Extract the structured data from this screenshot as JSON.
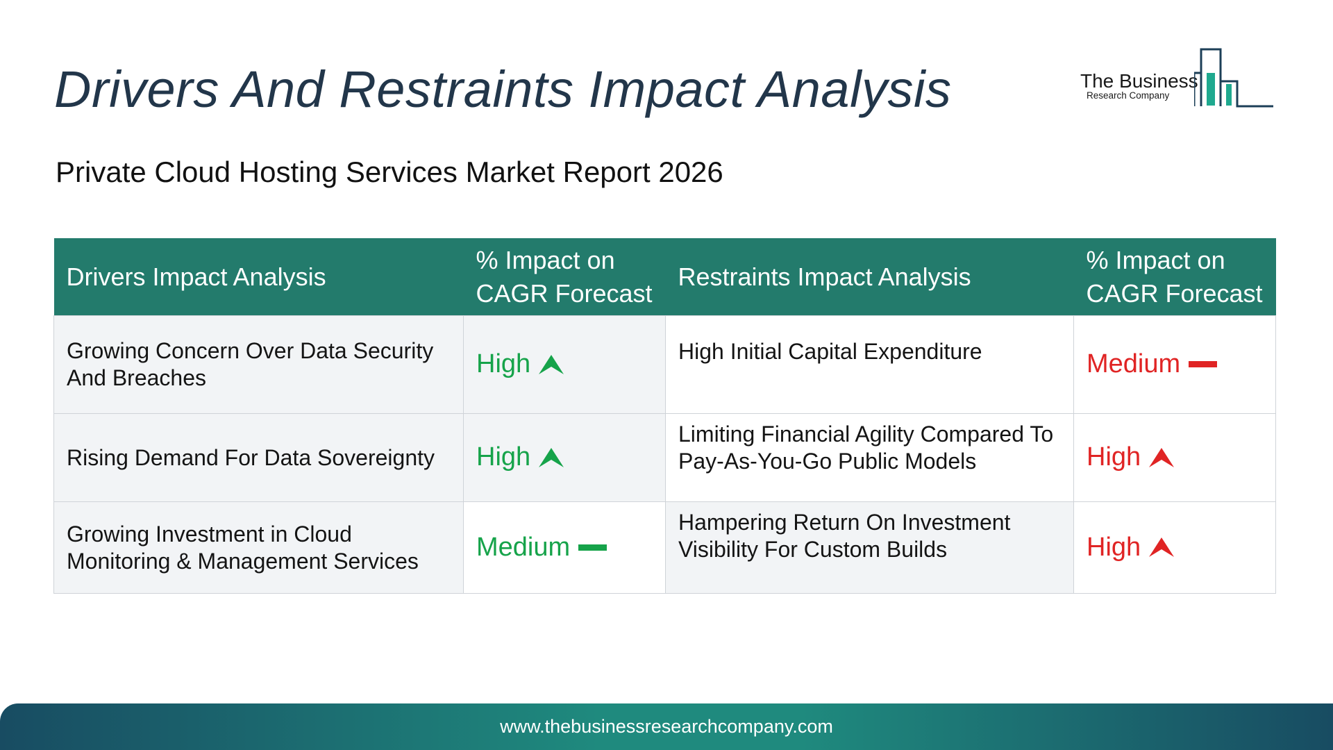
{
  "header": {
    "title": "Drivers And Restraints Impact Analysis",
    "subtitle": "Private Cloud Hosting Services Market Report 2026"
  },
  "logo": {
    "line1": "The Business",
    "line2": "Research Company"
  },
  "table": {
    "headers": [
      "Drivers Impact Analysis",
      "% Impact on CAGR Forecast",
      "Restraints Impact Analysis",
      "% Impact on CAGR Forecast"
    ],
    "rows": [
      {
        "driver": "Growing Concern Over Data Security And Breaches",
        "driver_impact": "High",
        "driver_icon": "arrow-up-icon",
        "restraint": "High Initial Capital Expenditure",
        "restraint_impact": "Medium",
        "restraint_icon": "dash-icon"
      },
      {
        "driver": "Rising Demand For Data Sovereignty",
        "driver_impact": "High",
        "driver_icon": "arrow-up-icon",
        "restraint": "Limiting Financial Agility Compared To Pay-As-You-Go Public Models",
        "restraint_impact": "High",
        "restraint_icon": "arrow-up-icon"
      },
      {
        "driver": "Growing Investment in Cloud Monitoring & Management Services",
        "driver_impact": "Medium",
        "driver_icon": "dash-icon",
        "restraint": "Hampering Return On Investment Visibility For Custom Builds",
        "restraint_impact": "High",
        "restraint_icon": "arrow-up-icon"
      }
    ]
  },
  "colors": {
    "header_bg": "#237b6c",
    "driver_impact": "#16a34a",
    "restraint_impact": "#e02424",
    "title": "#22364a"
  },
  "footer": {
    "url": "www.thebusinessresearchcompany.com"
  }
}
